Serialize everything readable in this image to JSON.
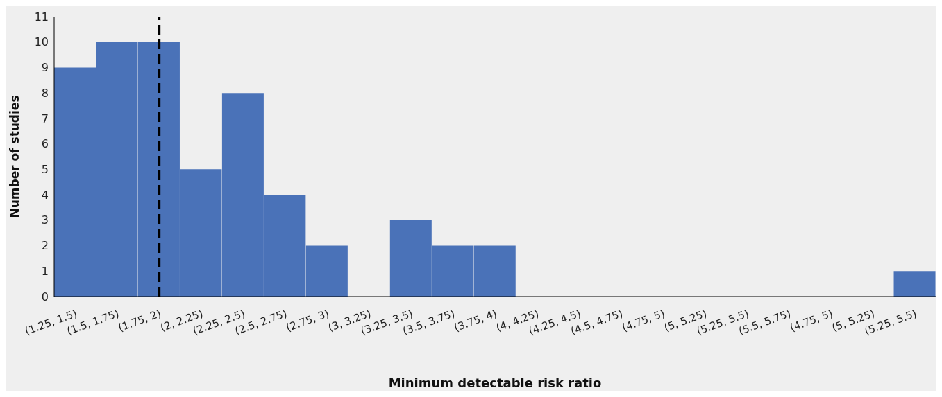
{
  "chart_data": {
    "type": "bar",
    "xlabel": "Minimum detectable risk ratio",
    "ylabel": "Number of studies",
    "categories": [
      "(1.25, 1.5)",
      "(1.5, 1.75)",
      "(1.75, 2)",
      "(2, 2.25)",
      "(2.25, 2.5)",
      "(2.5, 2.75)",
      "(2.75, 3)",
      "(3, 3.25)",
      "(3.25, 3.5)",
      "(3.5, 3.75)",
      "(3.75, 4)",
      "(4, 4.25)",
      "(4.25, 4.5)",
      "(4.5, 4.75)",
      "(4.75, 5)",
      "(5, 5.25)",
      "(5.25, 5.5)",
      "(5.5, 5.75)",
      "(4.75, 5)",
      "(5, 5.25)",
      "(5.25, 5.5)"
    ],
    "values": [
      9,
      10,
      10,
      5,
      8,
      4,
      2,
      0,
      3,
      2,
      2,
      0,
      0,
      0,
      0,
      0,
      0,
      0,
      0,
      0,
      1
    ],
    "color": "#4a72b8",
    "ylim": [
      0,
      11
    ],
    "yticks": [
      0,
      1,
      2,
      3,
      4,
      5,
      6,
      7,
      8,
      9,
      10,
      11
    ],
    "ref_lines": [
      {
        "axis": "x",
        "value": "(1.75, 2)",
        "color": "#000000",
        "line_style": "dashed"
      }
    ]
  }
}
